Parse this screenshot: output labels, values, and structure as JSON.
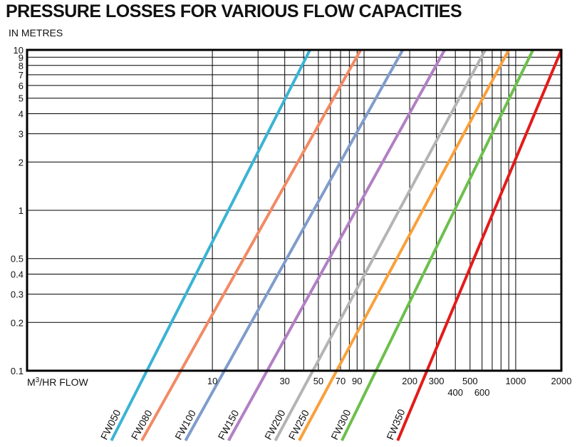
{
  "chart_data": {
    "type": "line",
    "title": "PRESSURE LOSSES FOR VARIOUS FLOW CAPACITIES",
    "subtitle": "IN METRES",
    "xlabel_prefix": "M",
    "xlabel_sup": "3",
    "xlabel_suffix": "/HR FLOW",
    "ylabel": "",
    "xscale": "log",
    "yscale": "log",
    "xlim": [
      0.6,
      2000
    ],
    "ylim": [
      0.1,
      10
    ],
    "grid": true,
    "x_gridlines": [
      10,
      20,
      30,
      40,
      50,
      60,
      70,
      80,
      90,
      100,
      200,
      300,
      400,
      500,
      600,
      700,
      800,
      900,
      1000,
      2000
    ],
    "x_ticks": [
      {
        "value": 10,
        "label": "10",
        "row": 0
      },
      {
        "value": 30,
        "label": "30",
        "row": 0
      },
      {
        "value": 50,
        "label": "50",
        "row": 0
      },
      {
        "value": 70,
        "label": "70",
        "row": 0
      },
      {
        "value": 90,
        "label": "90",
        "row": 0
      },
      {
        "value": 200,
        "label": "200",
        "row": 0
      },
      {
        "value": 300,
        "label": "300",
        "row": 0
      },
      {
        "value": 400,
        "label": "400",
        "row": 1
      },
      {
        "value": 500,
        "label": "500",
        "row": 0
      },
      {
        "value": 600,
        "label": "600",
        "row": 1
      },
      {
        "value": 1000,
        "label": "1000",
        "row": 0
      },
      {
        "value": 2000,
        "label": "2000",
        "row": 0
      }
    ],
    "y_ticks": [
      {
        "value": 0.1,
        "label": "0.1"
      },
      {
        "value": 0.2,
        "label": "0.2"
      },
      {
        "value": 0.3,
        "label": "0.3"
      },
      {
        "value": 0.4,
        "label": "0.4"
      },
      {
        "value": 0.5,
        "label": "0.5"
      },
      {
        "value": 1,
        "label": "1"
      },
      {
        "value": 2,
        "label": "2"
      },
      {
        "value": 3,
        "label": "3"
      },
      {
        "value": 4,
        "label": "4"
      },
      {
        "value": 5,
        "label": "5"
      },
      {
        "value": 6,
        "label": "6"
      },
      {
        "value": 7,
        "label": "7"
      },
      {
        "value": 8,
        "label": "8"
      },
      {
        "value": 9,
        "label": "9"
      },
      {
        "value": 10,
        "label": "10"
      }
    ],
    "series": [
      {
        "name": "FW050",
        "color": "#3bb3d4",
        "x": [
          3.7,
          44
        ],
        "y": [
          0.1,
          10
        ]
      },
      {
        "name": "FW080",
        "color": "#f28a64",
        "x": [
          6.2,
          95
        ],
        "y": [
          0.1,
          10
        ]
      },
      {
        "name": "FW100",
        "color": "#7f9ccc",
        "x": [
          12,
          180
        ],
        "y": [
          0.1,
          10
        ]
      },
      {
        "name": "FW150",
        "color": "#b27fc4",
        "x": [
          23,
          340
        ],
        "y": [
          0.1,
          10
        ]
      },
      {
        "name": "FW200",
        "color": "#b4b4b4",
        "x": [
          46,
          630
        ],
        "y": [
          0.1,
          10
        ]
      },
      {
        "name": "FW250",
        "color": "#f9a03c",
        "x": [
          66,
          900
        ],
        "y": [
          0.1,
          10
        ]
      },
      {
        "name": "FW300",
        "color": "#6cbf4c",
        "x": [
          120,
          1300
        ],
        "y": [
          0.1,
          10
        ]
      },
      {
        "name": "FW350",
        "color": "#e31b1b",
        "x": [
          260,
          2000
        ],
        "y": [
          0.1,
          10
        ]
      }
    ]
  }
}
